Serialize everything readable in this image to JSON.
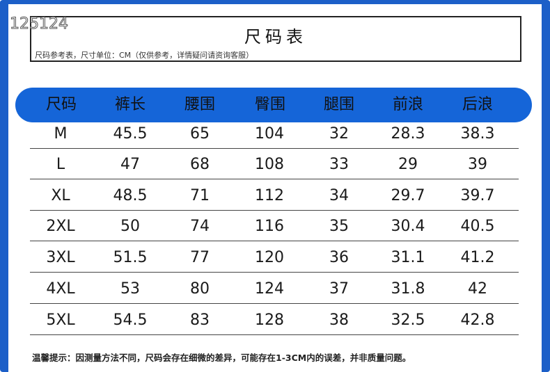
{
  "watermark": "125124",
  "header": {
    "title": "尺码表",
    "subtitle": "尺码参考表，尺寸单位：CM（仅供参考，详情疑问请资询客服）"
  },
  "table": {
    "columns": [
      "尺码",
      "裤长",
      "腰围",
      "臀围",
      "腿围",
      "前浪",
      "后浪"
    ],
    "rows": [
      [
        "M",
        "45.5",
        "65",
        "104",
        "32",
        "28.3",
        "38.3"
      ],
      [
        "L",
        "47",
        "68",
        "108",
        "33",
        "29",
        "39"
      ],
      [
        "XL",
        "48.5",
        "71",
        "112",
        "34",
        "29.7",
        "39.7"
      ],
      [
        "2XL",
        "50",
        "74",
        "116",
        "35",
        "30.4",
        "40.5"
      ],
      [
        "3XL",
        "51.5",
        "77",
        "120",
        "36",
        "31.1",
        "41.2"
      ],
      [
        "4XL",
        "53",
        "80",
        "124",
        "37",
        "31.8",
        "42"
      ],
      [
        "5XL",
        "54.5",
        "83",
        "128",
        "38",
        "32.5",
        "42.8"
      ]
    ]
  },
  "footer": {
    "note": "温馨提示：因测量方法不同，尺码会存在细微的差异，可能存在1-3CM内的误差，并非质量问题。"
  },
  "colors": {
    "accent": "#1565d8",
    "frame": "#1c5fc8"
  }
}
